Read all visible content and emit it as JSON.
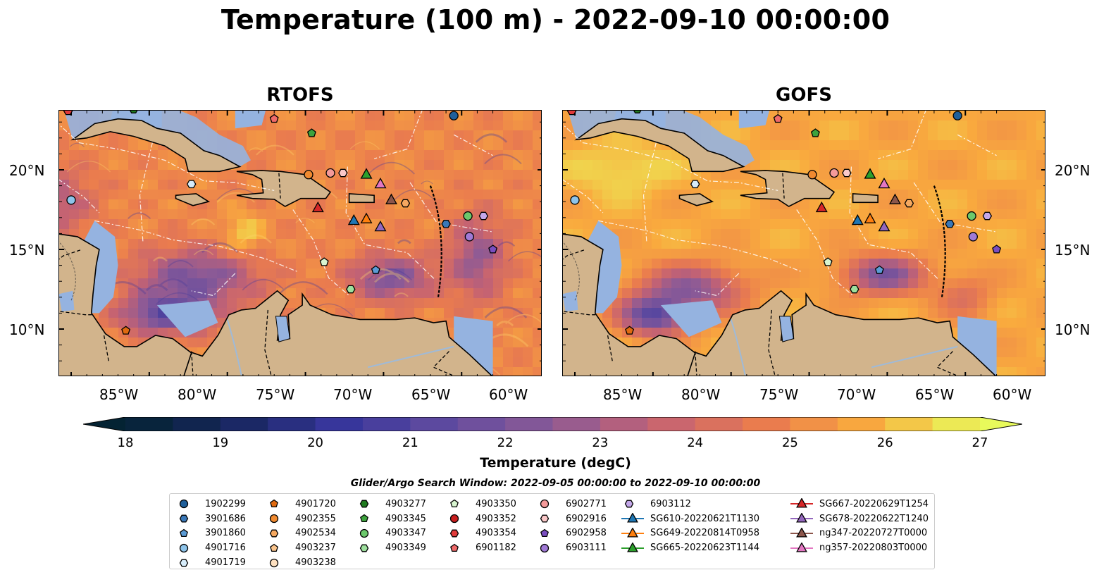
{
  "title": "Temperature (100 m) - 2022-09-10 00:00:00",
  "panels": [
    {
      "name": "RTOFS",
      "style": "rtofs"
    },
    {
      "name": "GOFS",
      "style": "gofs"
    }
  ],
  "lon_ticks": [
    "85°W",
    "80°W",
    "75°W",
    "70°W",
    "65°W",
    "60°W"
  ],
  "lat_ticks": [
    "20°N",
    "15°N",
    "10°N"
  ],
  "colorbar": {
    "label": "Temperature (degC)",
    "min": 18,
    "max": 27,
    "step": 0.5,
    "ticks": [
      "18",
      "19",
      "20",
      "21",
      "22",
      "23",
      "24",
      "25",
      "26",
      "27"
    ],
    "extend": "both",
    "colormap": "thermal"
  },
  "search_window": "Glider/Argo Search Window: 2022-09-05 00:00:00 to 2022-09-10 00:00:00",
  "colors": {
    "land": "#d2b48c",
    "shelf_water": "#95b3e0",
    "coastline": "#000000",
    "eez_lines": "#ffffff"
  },
  "legend": [
    [
      {
        "label": "1902299",
        "marker": "circle",
        "color": "#1f5f9a"
      },
      {
        "label": "3901686",
        "marker": "hexagon",
        "color": "#3a78b8"
      },
      {
        "label": "3901860",
        "marker": "pentagon",
        "color": "#5b9bd5"
      },
      {
        "label": "4901716",
        "marker": "circle",
        "color": "#8ec4ea"
      },
      {
        "label": "4901719",
        "marker": "hexagon",
        "color": "#d6ecfa"
      }
    ],
    [
      {
        "label": "4901720",
        "marker": "pentagon",
        "color": "#e06a10"
      },
      {
        "label": "4902355",
        "marker": "circle",
        "color": "#f08a30"
      },
      {
        "label": "4902534",
        "marker": "hexagon",
        "color": "#f5a860"
      },
      {
        "label": "4903237",
        "marker": "pentagon",
        "color": "#fac48c"
      },
      {
        "label": "4903238",
        "marker": "circle",
        "color": "#fde0c0"
      }
    ],
    [
      {
        "label": "4903277",
        "marker": "hexagon",
        "color": "#1f7a1f"
      },
      {
        "label": "4903345",
        "marker": "pentagon",
        "color": "#3da33d"
      },
      {
        "label": "4903347",
        "marker": "circle",
        "color": "#6cc86c"
      },
      {
        "label": "4903349",
        "marker": "hexagon",
        "color": "#9ee09e"
      }
    ],
    [
      {
        "label": "4903350",
        "marker": "pentagon",
        "color": "#d8f5d0"
      },
      {
        "label": "4903352",
        "marker": "circle",
        "color": "#c81e1e"
      },
      {
        "label": "4903354",
        "marker": "hexagon",
        "color": "#e03a3a"
      },
      {
        "label": "6901182",
        "marker": "pentagon",
        "color": "#f06a6a"
      }
    ],
    [
      {
        "label": "6902771",
        "marker": "circle",
        "color": "#f49a9a"
      },
      {
        "label": "6902916",
        "marker": "hexagon",
        "color": "#fac8c8"
      },
      {
        "label": "6902958",
        "marker": "pentagon",
        "color": "#7a4ec0"
      },
      {
        "label": "6903111",
        "marker": "circle",
        "color": "#a07ad6"
      }
    ],
    [
      {
        "label": "6903112",
        "marker": "hexagon",
        "color": "#c4a8ea"
      },
      {
        "label": "SG610-20220621T1130",
        "marker": "triangle",
        "color": "#1f77b4",
        "line": true
      },
      {
        "label": "SG649-20220814T0958",
        "marker": "triangle",
        "color": "#ff7f0e",
        "line": true
      },
      {
        "label": "SG665-20220623T1144",
        "marker": "triangle",
        "color": "#2ca02c",
        "line": true
      }
    ],
    [
      {
        "label": "SG667-20220629T1254",
        "marker": "triangle",
        "color": "#d62728",
        "line": true
      },
      {
        "label": "SG678-20220622T1240",
        "marker": "triangle",
        "color": "#9467bd",
        "line": true
      },
      {
        "label": "ng347-20220727T0000",
        "marker": "triangle",
        "color": "#8c564b",
        "line": true
      },
      {
        "label": "ng357-20220803T0000",
        "marker": "triangle",
        "color": "#e377c2",
        "line": true
      }
    ]
  ],
  "platforms": [
    {
      "marker": "circle",
      "color": "#1f5f9a",
      "lon": -60.5,
      "lat": 23.4
    },
    {
      "marker": "circle",
      "color": "#8ec4ea",
      "lon": -85.0,
      "lat": 18.1
    },
    {
      "marker": "hexagon",
      "color": "#d6ecfa",
      "lon": -77.3,
      "lat": 19.1
    },
    {
      "marker": "pentagon",
      "color": "#5b9bd5",
      "lon": -65.5,
      "lat": 13.7
    },
    {
      "marker": "hexagon",
      "color": "#3a78b8",
      "lon": -61.0,
      "lat": 16.6
    },
    {
      "marker": "pentagon",
      "color": "#e06a10",
      "lon": -81.5,
      "lat": 9.9
    },
    {
      "marker": "circle",
      "color": "#f08a30",
      "lon": -69.8,
      "lat": 19.7
    },
    {
      "marker": "hexagon",
      "color": "#f5a860",
      "lon": -63.6,
      "lat": 17.9
    },
    {
      "marker": "pentagon",
      "color": "#3da33d",
      "lon": -69.6,
      "lat": 22.3
    },
    {
      "marker": "hexagon",
      "color": "#1f7a1f",
      "lon": -81.0,
      "lat": 23.8
    },
    {
      "marker": "circle",
      "color": "#6cc86c",
      "lon": -59.6,
      "lat": 17.1
    },
    {
      "marker": "hexagon",
      "color": "#9ee09e",
      "lon": -67.1,
      "lat": 12.5
    },
    {
      "marker": "pentagon",
      "color": "#d8f5d0",
      "lon": -68.8,
      "lat": 14.2
    },
    {
      "marker": "pentagon",
      "color": "#f06a6a",
      "lon": -72.0,
      "lat": 23.2
    },
    {
      "marker": "hexagon",
      "color": "#e03a3a",
      "lon": -85.2,
      "lat": 23.7
    },
    {
      "marker": "circle",
      "color": "#f49a9a",
      "lon": -68.4,
      "lat": 19.8
    },
    {
      "marker": "hexagon",
      "color": "#fac8c8",
      "lon": -67.6,
      "lat": 19.8
    },
    {
      "marker": "circle",
      "color": "#a07ad6",
      "lon": -59.5,
      "lat": 15.8
    },
    {
      "marker": "hexagon",
      "color": "#c4a8ea",
      "lon": -58.6,
      "lat": 17.1
    },
    {
      "marker": "pentagon",
      "color": "#7a4ec0",
      "lon": -58.0,
      "lat": 15.0
    },
    {
      "marker": "triangle",
      "color": "#d62728",
      "lon": -69.2,
      "lat": 17.6
    },
    {
      "marker": "triangle",
      "color": "#1f77b4",
      "lon": -66.9,
      "lat": 16.8
    },
    {
      "marker": "triangle",
      "color": "#ff7f0e",
      "lon": -66.1,
      "lat": 16.9
    },
    {
      "marker": "triangle",
      "color": "#2ca02c",
      "lon": -66.1,
      "lat": 19.7
    },
    {
      "marker": "triangle",
      "color": "#9467bd",
      "lon": -65.2,
      "lat": 16.4
    },
    {
      "marker": "triangle",
      "color": "#e377c2",
      "lon": -65.2,
      "lat": 19.1
    },
    {
      "marker": "triangle",
      "color": "#8c564b",
      "lon": -64.5,
      "lat": 18.1
    }
  ]
}
